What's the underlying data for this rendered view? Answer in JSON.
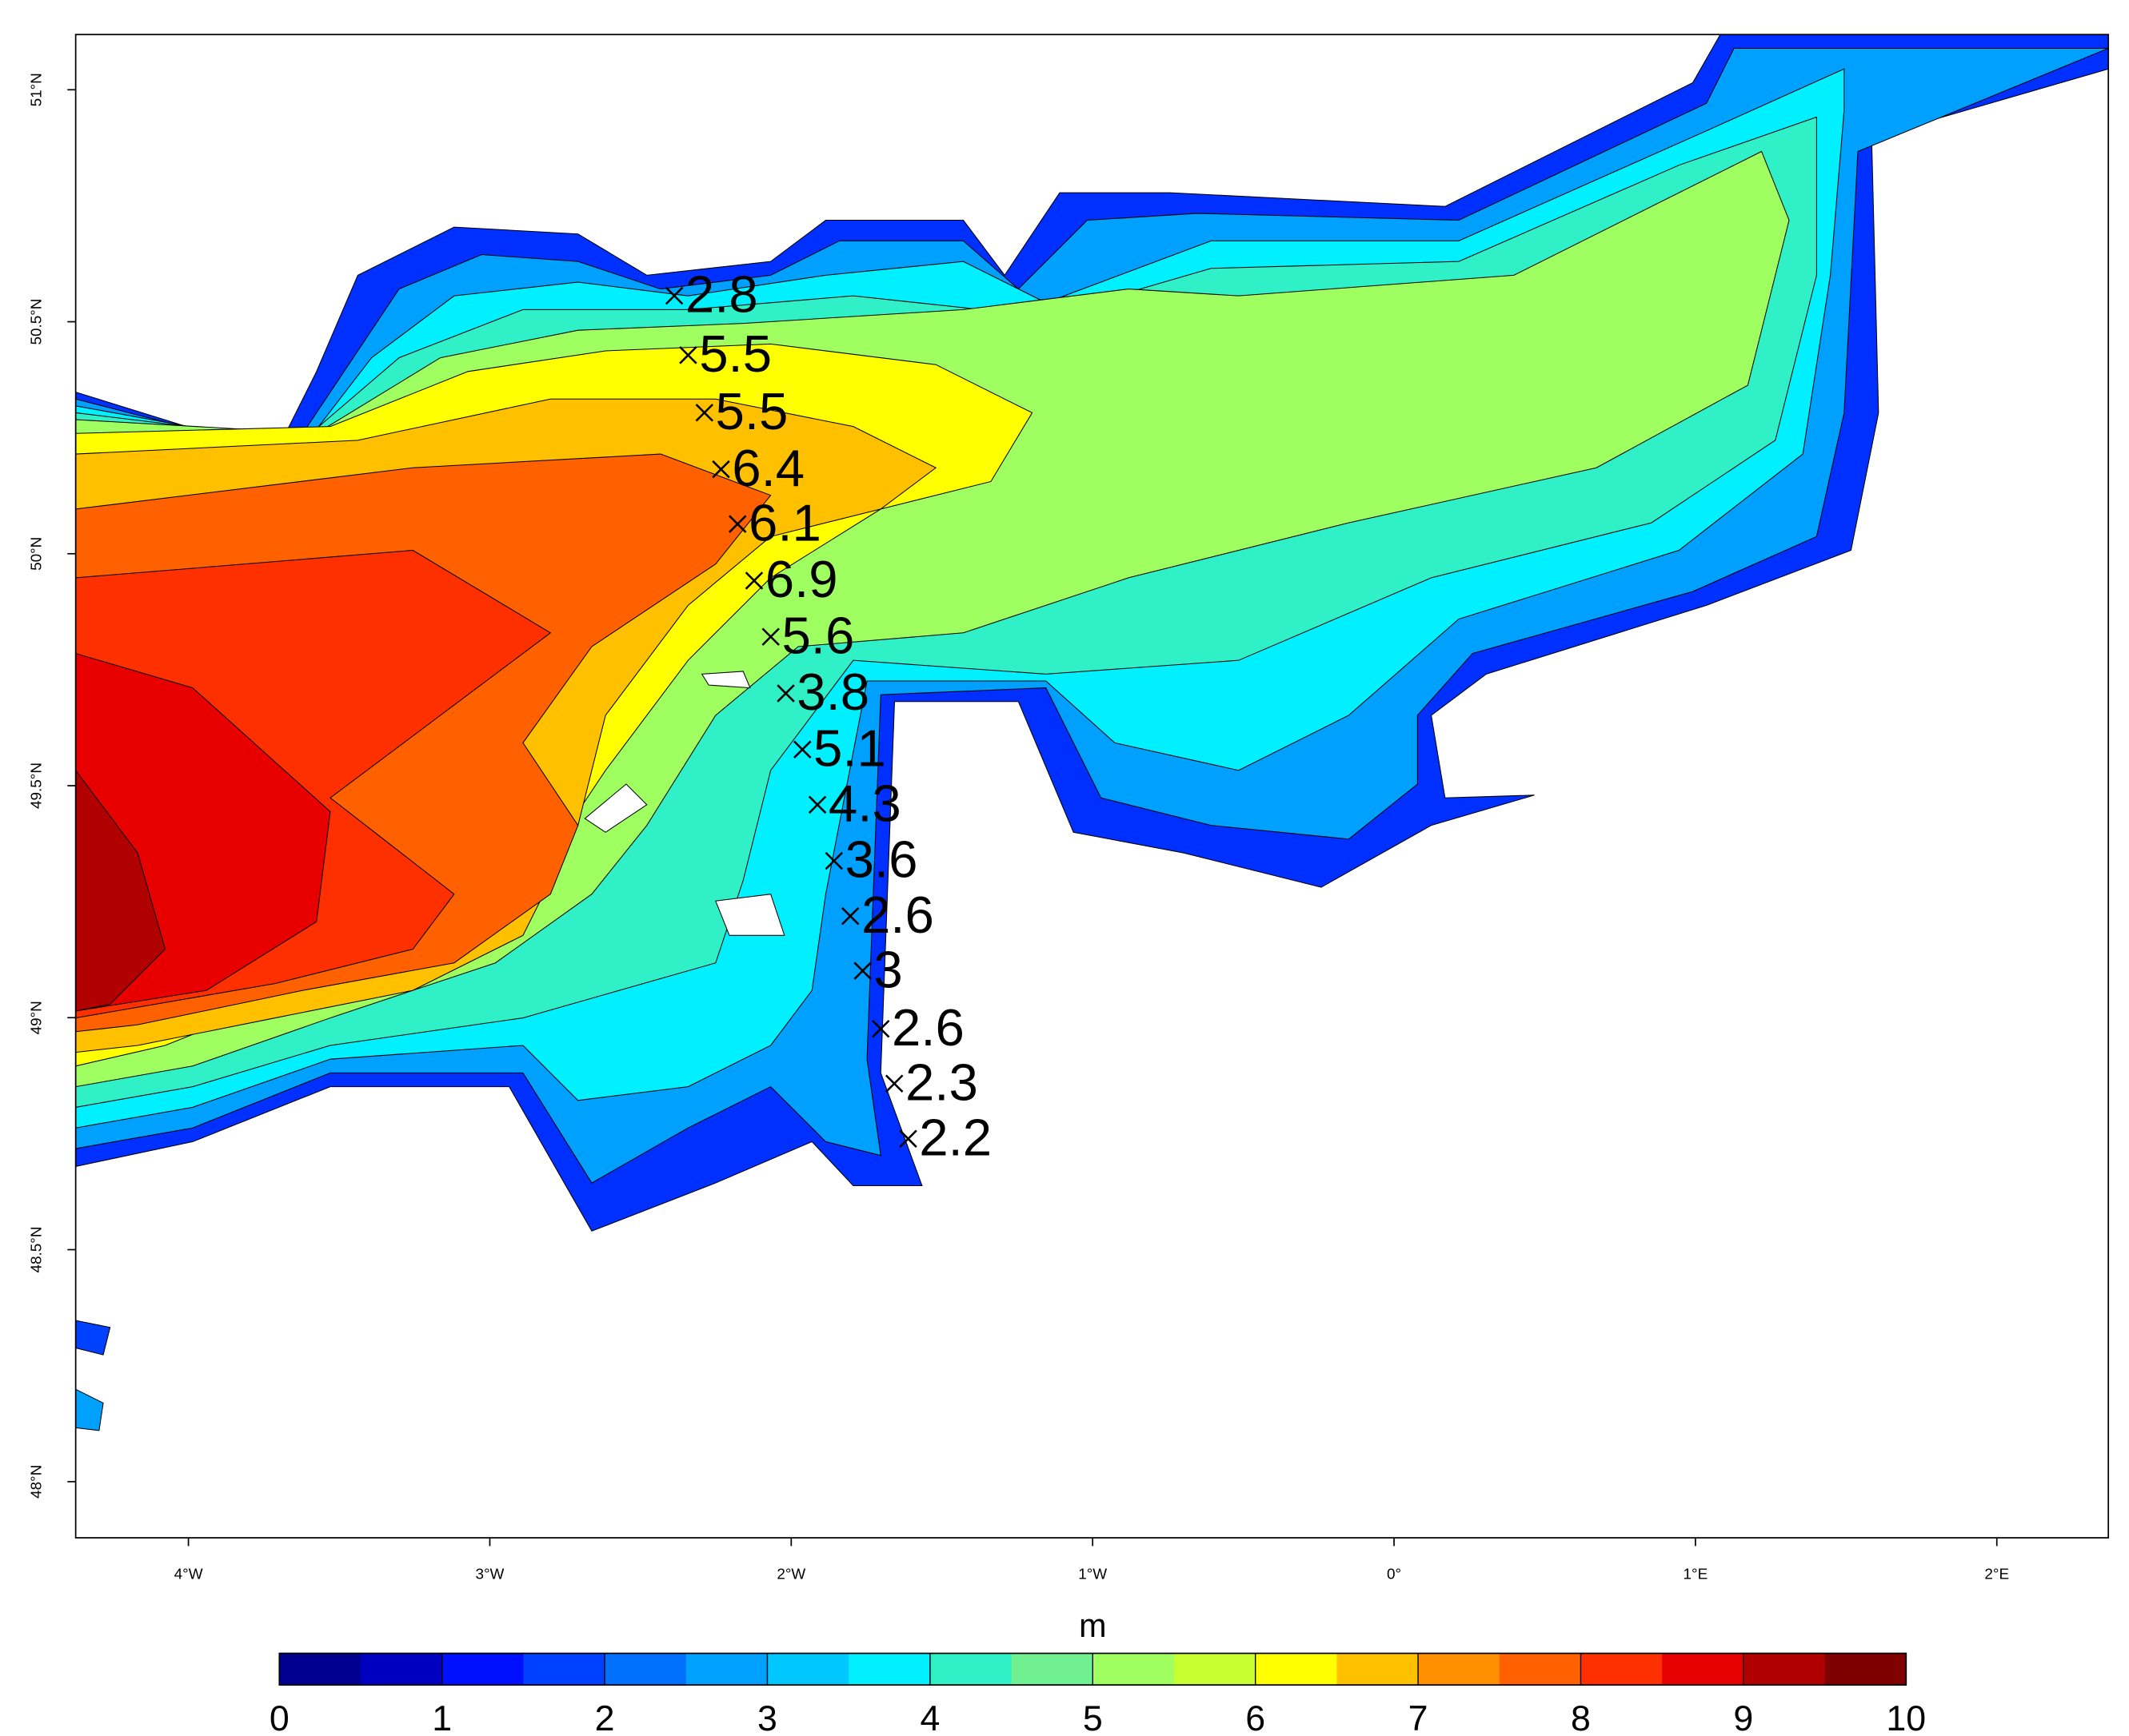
{
  "map": {
    "xlim": [
      -4.374,
      2.37
    ],
    "ylim": [
      47.879,
      51.119
    ],
    "xticks": [
      {
        "value": -4,
        "label": "4°W"
      },
      {
        "value": -3,
        "label": "3°W"
      },
      {
        "value": -2,
        "label": "2°W"
      },
      {
        "value": -1,
        "label": "1°W"
      },
      {
        "value": 0,
        "label": "0°"
      },
      {
        "value": 1,
        "label": "1°E"
      },
      {
        "value": 2,
        "label": "2°E"
      }
    ],
    "yticks": [
      {
        "value": 48,
        "label": "48°N"
      },
      {
        "value": 48.5,
        "label": "48.5°N"
      },
      {
        "value": 49,
        "label": "49°N"
      },
      {
        "value": 49.5,
        "label": "49.5°N"
      },
      {
        "value": 50,
        "label": "50°N"
      },
      {
        "value": 50.5,
        "label": "50.5°N"
      },
      {
        "value": 51,
        "label": "51°N"
      }
    ],
    "points": [
      {
        "lon": -2.388,
        "lat": 50.556,
        "value": 2.8
      },
      {
        "lon": -2.342,
        "lat": 50.428,
        "value": 5.5
      },
      {
        "lon": -2.288,
        "lat": 50.304,
        "value": 5.5
      },
      {
        "lon": -2.233,
        "lat": 50.182,
        "value": 6.4
      },
      {
        "lon": -2.178,
        "lat": 50.064,
        "value": 6.1
      },
      {
        "lon": -2.123,
        "lat": 49.942,
        "value": 6.9
      },
      {
        "lon": -2.068,
        "lat": 49.821,
        "value": 5.6
      },
      {
        "lon": -2.018,
        "lat": 49.699,
        "value": 3.8
      },
      {
        "lon": -1.963,
        "lat": 49.578,
        "value": 5.1
      },
      {
        "lon": -1.913,
        "lat": 49.459,
        "value": 4.3
      },
      {
        "lon": -1.858,
        "lat": 49.338,
        "value": 3.6
      },
      {
        "lon": -1.804,
        "lat": 49.219,
        "value": 2.6
      },
      {
        "lon": -1.763,
        "lat": 49.101,
        "value": 3
      },
      {
        "lon": -1.703,
        "lat": 48.976,
        "value": 2.6
      },
      {
        "lon": -1.658,
        "lat": 48.858,
        "value": 2.3
      },
      {
        "lon": -1.612,
        "lat": 48.739,
        "value": 2.2
      }
    ],
    "colorbar": {
      "title": "m",
      "lim": [
        0,
        10
      ],
      "ticks": [
        0,
        1,
        2,
        3,
        4,
        5,
        6,
        7,
        8,
        9,
        10
      ],
      "colors": [
        "#00008f",
        "#0000c0",
        "#0010ff",
        "#0040ff",
        "#0070ff",
        "#00a0ff",
        "#00c8ff",
        "#00f0ff",
        "#30f0c8",
        "#70f090",
        "#a0ff60",
        "#c8ff30",
        "#ffff00",
        "#ffc000",
        "#ff9000",
        "#ff6000",
        "#ff3000",
        "#e80000",
        "#b00000",
        "#800000"
      ]
    }
  }
}
